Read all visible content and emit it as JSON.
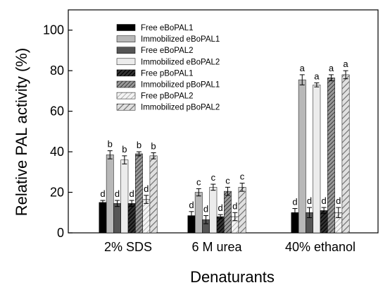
{
  "chart_data": {
    "type": "bar",
    "xlabel": "Denaturants",
    "ylabel": "Relative PAL activity (%)",
    "ylim": [
      0,
      110
    ],
    "yticks": [
      0,
      20,
      40,
      60,
      80,
      100
    ],
    "categories": [
      "2% SDS",
      "6 M urea",
      "40% ethanol"
    ],
    "legend_position": "top-center",
    "series": [
      {
        "name": "Free eBoPAL1",
        "values": [
          15,
          8.5,
          10
        ],
        "errors": [
          1.0,
          2.0,
          2.0
        ],
        "labels": [
          "d",
          "d",
          "d"
        ],
        "color": "#000000",
        "pattern": "solid"
      },
      {
        "name": "Immobilized eBoPAL1",
        "values": [
          38.5,
          20,
          75.5
        ],
        "errors": [
          2.0,
          1.8,
          2.5
        ],
        "labels": [
          "b",
          "c",
          "a"
        ],
        "color": "#b8b8b8",
        "pattern": "solid"
      },
      {
        "name": "Free eBoPAL2",
        "values": [
          14.5,
          6.5,
          10
        ],
        "errors": [
          1.5,
          2.0,
          2.5
        ],
        "labels": [
          "d",
          "d",
          "d"
        ],
        "color": "#555555",
        "pattern": "solid"
      },
      {
        "name": "Immobilized eBoPAL2",
        "values": [
          36,
          22.5,
          73
        ],
        "errors": [
          2.0,
          1.5,
          1.0
        ],
        "labels": [
          "b",
          "c",
          "a"
        ],
        "color": "#ececec",
        "pattern": "solid"
      },
      {
        "name": "Free pBoPAL1",
        "values": [
          14.5,
          8,
          11
        ],
        "errors": [
          1.5,
          1.0,
          1.5
        ],
        "labels": [
          "d",
          "d",
          "d"
        ],
        "color": "#000000",
        "pattern": "hatch-dark"
      },
      {
        "name": "Immobilized pBoPAL1",
        "values": [
          39,
          20.5,
          76.5
        ],
        "errors": [
          1.0,
          2.0,
          1.5
        ],
        "labels": [
          "b",
          "c",
          "a"
        ],
        "color": "#707070",
        "pattern": "hatch-mid"
      },
      {
        "name": "Free pBoPAL2",
        "values": [
          16.5,
          8,
          10
        ],
        "errors": [
          2.0,
          2.0,
          2.5
        ],
        "labels": [
          "d",
          "d",
          "d"
        ],
        "color": "#d0d0d0",
        "pattern": "hatch-light"
      },
      {
        "name": "Immobilized pBoPAL2",
        "values": [
          38,
          22.5,
          78
        ],
        "errors": [
          1.5,
          2.0,
          2.0
        ],
        "labels": [
          "b",
          "c",
          "a"
        ],
        "color": "#a0a0a0",
        "pattern": "hatch-wide"
      }
    ]
  }
}
